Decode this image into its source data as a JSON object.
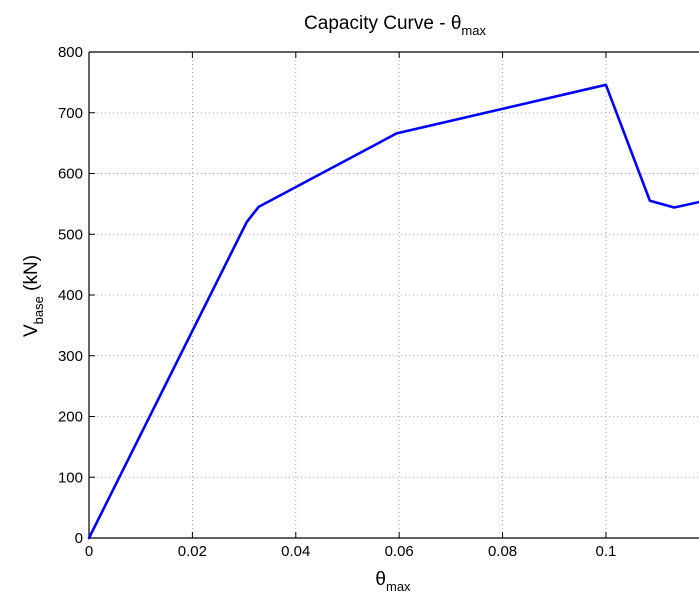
{
  "chart_data": {
    "type": "line",
    "title": {
      "main": "Capacity Curve - θ",
      "sub": "max"
    },
    "xlabel": {
      "main": "θ",
      "sub": "max"
    },
    "ylabel": {
      "main": "V",
      "sub": "base",
      "suffix": " (kN)"
    },
    "xlim": [
      0,
      0.118
    ],
    "ylim": [
      0,
      800
    ],
    "xticks": [
      0,
      0.02,
      0.04,
      0.06,
      0.08,
      0.1
    ],
    "xtick_labels": [
      "0",
      "0.02",
      "0.04",
      "0.06",
      "0.08",
      "0.1"
    ],
    "yticks": [
      0,
      100,
      200,
      300,
      400,
      500,
      600,
      700,
      800
    ],
    "ytick_labels": [
      "0",
      "100",
      "200",
      "300",
      "400",
      "500",
      "600",
      "700",
      "800"
    ],
    "grid": true,
    "series": [
      {
        "color": "#0000ff",
        "x": [
          0,
          0.0305,
          0.0328,
          0.0595,
          0.1,
          0.1085,
          0.1132,
          0.118
        ],
        "y": [
          0,
          520,
          545,
          666,
          746,
          555,
          544,
          553
        ]
      }
    ]
  }
}
